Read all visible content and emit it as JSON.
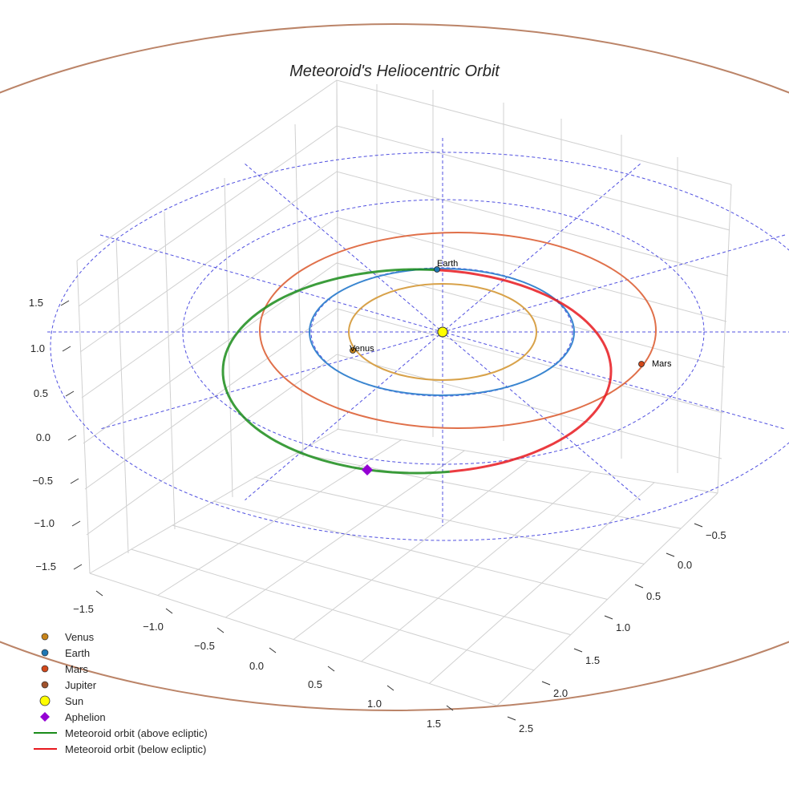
{
  "chart_data": {
    "type": "3d-line",
    "title": "Meteoroid's Heliocentric Orbit",
    "axes": {
      "x": {
        "ticks": [
          "−1.5",
          "−1.0",
          "−0.5",
          "0.0",
          "0.5",
          "1.0",
          "1.5"
        ],
        "range": [
          -1.7,
          1.7
        ]
      },
      "y": {
        "ticks": [
          "−0.5",
          "0.0",
          "0.5",
          "1.0",
          "1.5",
          "2.0",
          "2.5"
        ],
        "range": [
          -0.7,
          2.6
        ]
      },
      "z": {
        "ticks": [
          "1.5",
          "1.0",
          "0.5",
          "0.0",
          "−0.5",
          "−1.0",
          "−1.5"
        ],
        "range": [
          -1.7,
          1.7
        ]
      }
    },
    "bodies": [
      {
        "name": "Venus",
        "label": "Venus",
        "orbit_au": 0.72,
        "color": "#c8841a"
      },
      {
        "name": "Earth",
        "label": "Earth",
        "orbit_au": 1.0,
        "color": "#1f77b4"
      },
      {
        "name": "Mars",
        "label": "Mars",
        "orbit_au": 1.52,
        "color": "#d2481a"
      },
      {
        "name": "Jupiter",
        "orbit_au": 5.2,
        "color": "#a0522d"
      }
    ],
    "sun": {
      "color": "#ffff00"
    },
    "aphelion": {
      "color": "#9400d3"
    },
    "legend": {
      "placement": "bottom-left",
      "entries": [
        {
          "label": "Venus",
          "marker": "circle",
          "color": "#c8841a"
        },
        {
          "label": "Earth",
          "marker": "circle",
          "color": "#1f77b4"
        },
        {
          "label": "Mars",
          "marker": "circle",
          "color": "#d2481a"
        },
        {
          "label": "Jupiter",
          "marker": "circle",
          "color": "#a0522d"
        },
        {
          "label": "Sun",
          "marker": "circle-large",
          "color": "#ffff00"
        },
        {
          "label": "Aphelion",
          "marker": "diamond",
          "color": "#9400d3"
        },
        {
          "label": "Meteoroid orbit (above ecliptic)",
          "marker": "line",
          "color": "#1a8c1a"
        },
        {
          "label": "Meteoroid orbit (below ecliptic)",
          "marker": "line",
          "color": "#e8191e"
        }
      ]
    },
    "grid": true
  }
}
